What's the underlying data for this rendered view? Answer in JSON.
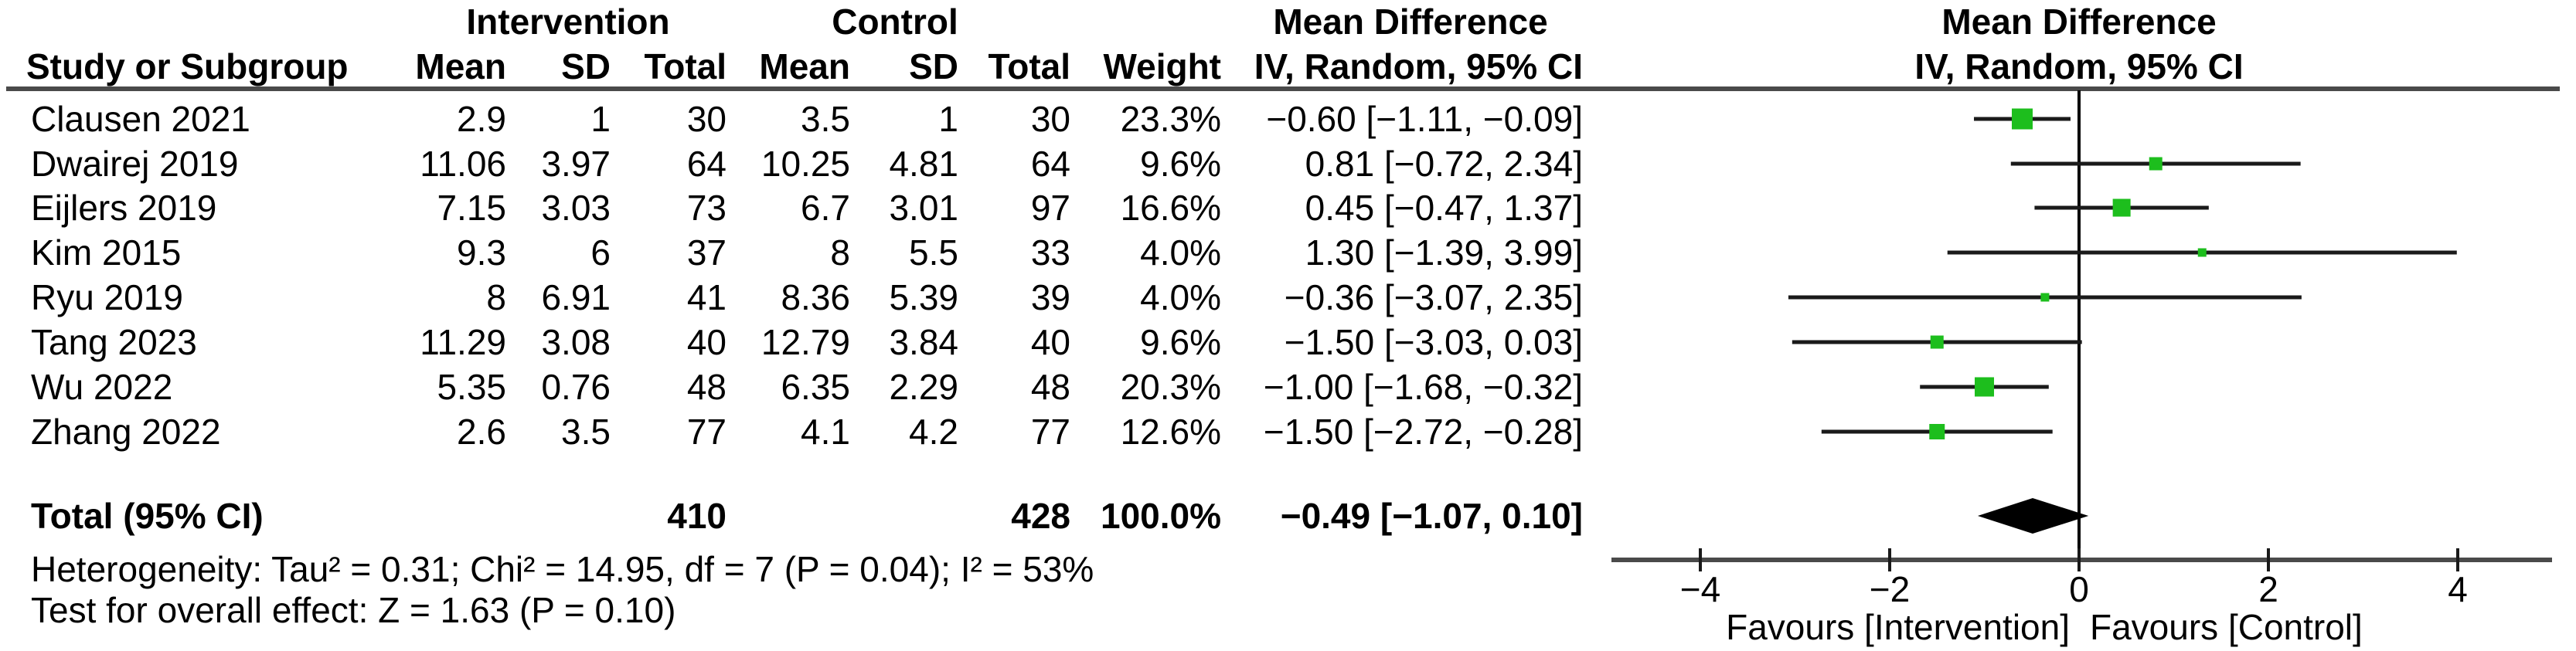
{
  "table": {
    "group_headers": {
      "intervention": "Intervention",
      "control": "Control",
      "md_text": "Mean Difference",
      "md_plot": "Mean Difference"
    },
    "study_header": "Study or Subgroup",
    "plot_subheader": "IV, Random, 95% CI",
    "column_headers": [
      "Mean",
      "SD",
      "Total",
      "Mean",
      "SD",
      "Total",
      "Weight",
      "IV, Random, 95% CI"
    ]
  },
  "chart_data": {
    "type": "scatter",
    "subtype": "forest-plot",
    "effect_measure": "Mean Difference",
    "model": "IV, Random, 95% CI",
    "xlim": [
      -5,
      5
    ],
    "ticks": [
      {
        "value": -4,
        "label": "−4"
      },
      {
        "value": -2,
        "label": "−2"
      },
      {
        "value": 0,
        "label": "0"
      },
      {
        "value": 2,
        "label": "2"
      },
      {
        "value": 4,
        "label": "4"
      }
    ],
    "favours_left": "Favours [Intervention]",
    "favours_right": "Favours [Control]",
    "studies": [
      {
        "name": "Clausen 2021",
        "i_mean": "2.9",
        "i_sd": "1",
        "i_total": "30",
        "c_mean": "3.5",
        "c_sd": "1",
        "c_total": "30",
        "weight": "23.3%",
        "ci_text": "−0.60 [−1.11, −0.09]",
        "md": -0.6,
        "lo": -1.11,
        "hi": -0.09,
        "weight_pct": 23.3
      },
      {
        "name": "Dwairej 2019",
        "i_mean": "11.06",
        "i_sd": "3.97",
        "i_total": "64",
        "c_mean": "10.25",
        "c_sd": "4.81",
        "c_total": "64",
        "weight": "9.6%",
        "ci_text": "0.81 [−0.72, 2.34]",
        "md": 0.81,
        "lo": -0.72,
        "hi": 2.34,
        "weight_pct": 9.6
      },
      {
        "name": "Eijlers 2019",
        "i_mean": "7.15",
        "i_sd": "3.03",
        "i_total": "73",
        "c_mean": "6.7",
        "c_sd": "3.01",
        "c_total": "97",
        "weight": "16.6%",
        "ci_text": "0.45 [−0.47, 1.37]",
        "md": 0.45,
        "lo": -0.47,
        "hi": 1.37,
        "weight_pct": 16.6
      },
      {
        "name": "Kim 2015",
        "i_mean": "9.3",
        "i_sd": "6",
        "i_total": "37",
        "c_mean": "8",
        "c_sd": "5.5",
        "c_total": "33",
        "weight": "4.0%",
        "ci_text": "1.30 [−1.39, 3.99]",
        "md": 1.3,
        "lo": -1.39,
        "hi": 3.99,
        "weight_pct": 4.0
      },
      {
        "name": "Ryu 2019",
        "i_mean": "8",
        "i_sd": "6.91",
        "i_total": "41",
        "c_mean": "8.36",
        "c_sd": "5.39",
        "c_total": "39",
        "weight": "4.0%",
        "ci_text": "−0.36 [−3.07, 2.35]",
        "md": -0.36,
        "lo": -3.07,
        "hi": 2.35,
        "weight_pct": 4.0
      },
      {
        "name": "Tang 2023",
        "i_mean": "11.29",
        "i_sd": "3.08",
        "i_total": "40",
        "c_mean": "12.79",
        "c_sd": "3.84",
        "c_total": "40",
        "weight": "9.6%",
        "ci_text": "−1.50 [−3.03, 0.03]",
        "md": -1.5,
        "lo": -3.03,
        "hi": 0.03,
        "weight_pct": 9.6
      },
      {
        "name": "Wu 2022",
        "i_mean": "5.35",
        "i_sd": "0.76",
        "i_total": "48",
        "c_mean": "6.35",
        "c_sd": "2.29",
        "c_total": "48",
        "weight": "20.3%",
        "ci_text": "−1.00 [−1.68, −0.32]",
        "md": -1.0,
        "lo": -1.68,
        "hi": -0.32,
        "weight_pct": 20.3
      },
      {
        "name": "Zhang 2022",
        "i_mean": "2.6",
        "i_sd": "3.5",
        "i_total": "77",
        "c_mean": "4.1",
        "c_sd": "4.2",
        "c_total": "77",
        "weight": "12.6%",
        "ci_text": "−1.50 [−2.72, −0.28]",
        "md": -1.5,
        "lo": -2.72,
        "hi": -0.28,
        "weight_pct": 12.6
      }
    ],
    "total": {
      "label": "Total (95% CI)",
      "intervention_total": "410",
      "control_total": "428",
      "weight": "100.0%",
      "ci_text": "−0.49 [−1.07, 0.10]",
      "md": -0.49,
      "lo": -1.07,
      "hi": 0.1
    },
    "heterogeneity": "Heterogeneity: Tau² = 0.31; Chi² = 14.95, df = 7 (P = 0.04); I² = 53%",
    "overall_effect": "Test for overall effect: Z = 1.63 (P = 0.10)"
  },
  "colors": {
    "marker_green": "#1DBE1D",
    "ci_line": "#1a1a1a",
    "axis_gray": "#4a4a4a",
    "diamond": "#000000"
  }
}
